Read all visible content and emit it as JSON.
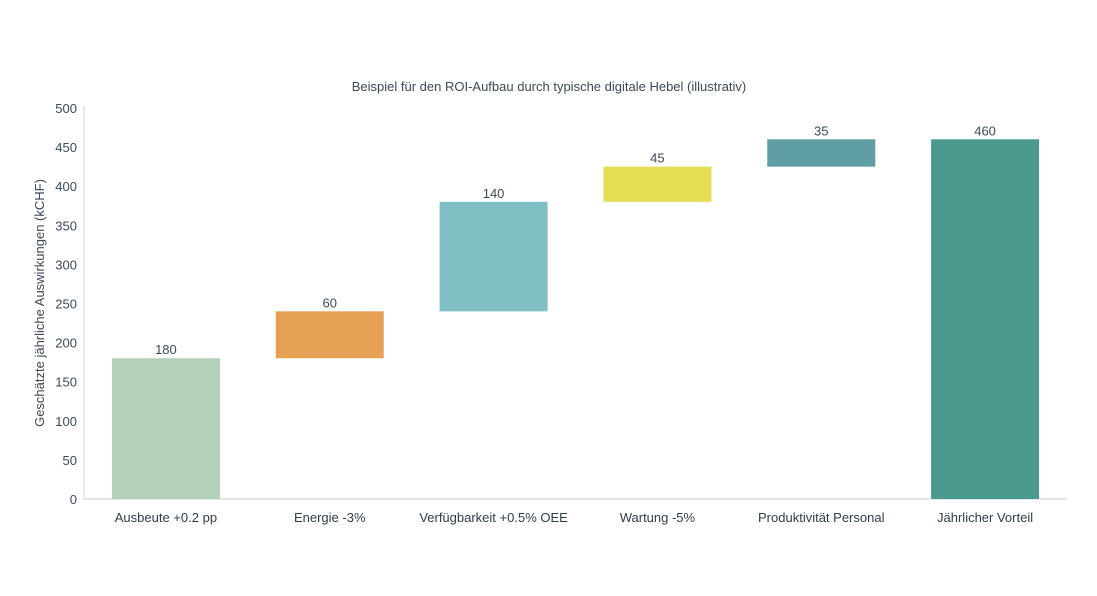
{
  "chart_data": {
    "type": "waterfall",
    "title": "Beispiel für den ROI-Aufbau durch typische digitale Hebel (illustrativ)",
    "xlabel": "",
    "ylabel": "Geschätzte jährliche Auswirkungen (kCHF)",
    "ylim": [
      0,
      500
    ],
    "yticks": [
      0,
      50,
      100,
      150,
      200,
      250,
      300,
      350,
      400,
      450,
      500
    ],
    "grid": false,
    "categories": [
      "Ausbeute +0.2 pp",
      "Energie -3%",
      "Verfügbarkeit +0.5% OEE",
      "Wartung -5%",
      "Produktivität Personal",
      "Jährlicher Vorteil"
    ],
    "values": [
      180,
      60,
      140,
      45,
      35,
      460
    ],
    "is_total": [
      false,
      false,
      false,
      false,
      false,
      true
    ],
    "value_labels": [
      "180",
      "60",
      "140",
      "45",
      "35",
      "460"
    ],
    "colors": [
      "#b3d1b9",
      "#e6a155",
      "#80bfc4",
      "#e3de52",
      "#5f9ea5",
      "#4a9a90"
    ]
  }
}
